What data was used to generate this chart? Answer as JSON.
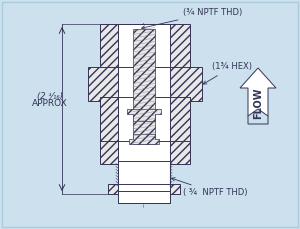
{
  "bg_color": "#cce0ee",
  "line_color": "#333355",
  "label_top": "(¾ NPTF THD)",
  "label_hex": "(1¾ HEX)",
  "label_bottom": "( ¾  NPTF THD)",
  "label_height_line1": "(2 ¹⁄₁₆)",
  "label_height_line2": "APPROX",
  "flow_text": "FLOW",
  "hatch_fill": "#e8e8e8",
  "white_fill": "#ffffff",
  "bg_inner": "#cce0ee"
}
